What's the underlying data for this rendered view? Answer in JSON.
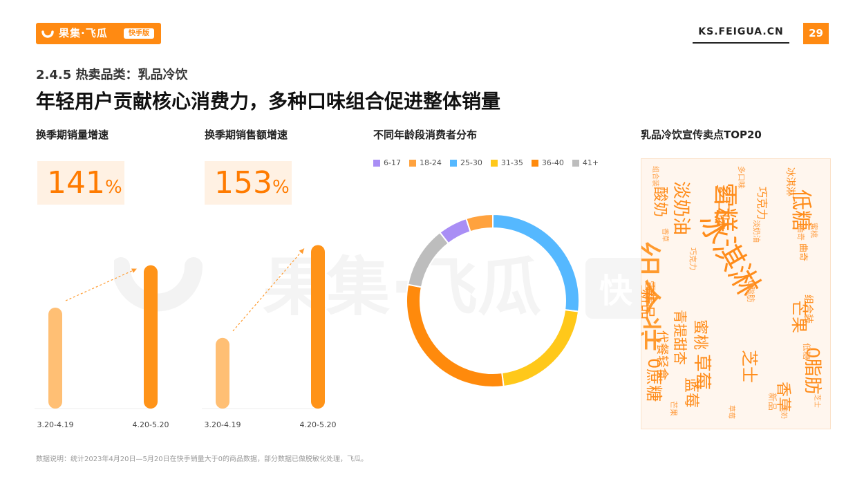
{
  "header": {
    "logo_text": "果集·飞瓜",
    "logo_badge": "快手版",
    "site": "KS.FEIGUA.CN",
    "page_number": "29"
  },
  "subtitle": "2.4.5 热卖品类：乳品冷饮",
  "title": "年轻用户贡献核心消费力，多种口味组合促进整体销量",
  "watermark": {
    "text": "果集·飞瓜",
    "badge": "快"
  },
  "panels": {
    "sales_volume": {
      "title": "换季期销量增速",
      "value": "141",
      "unit": "%"
    },
    "sales_amount": {
      "title": "换季期销售额增速",
      "value": "153",
      "unit": "%"
    },
    "age": {
      "title": "不同年龄段消费者分布"
    },
    "cloud": {
      "title": "乳品冷饮宣传卖点TOP20"
    }
  },
  "chart_data": [
    {
      "type": "bar",
      "categories": [
        "3.20-4.19",
        "4.20-5.20"
      ],
      "values": [
        50,
        71
      ],
      "growth": "141%",
      "colors": [
        "#ffbf74",
        "#ff9318"
      ]
    },
    {
      "type": "bar",
      "categories": [
        "3.20-4.19",
        "4.20-5.20"
      ],
      "values": [
        35,
        81
      ],
      "growth": "153%",
      "colors": [
        "#ffbf74",
        "#ff9318"
      ]
    },
    {
      "type": "pie",
      "donut": true,
      "legend_position": "top",
      "categories": [
        "6-17",
        "18-24",
        "25-30",
        "31-35",
        "36-40",
        "41+"
      ],
      "values": [
        5.5,
        5,
        27,
        21,
        30,
        11.5
      ],
      "colors": [
        "#a98ef5",
        "#ffa23e",
        "#55b8ff",
        "#ffc81a",
        "#ff8a0c",
        "#bdbdbd"
      ]
    }
  ],
  "word_cloud": [
    {
      "text": "组合装",
      "size": 54,
      "color": "#ff9a2e"
    },
    {
      "text": "冰淇淋",
      "size": 44,
      "color": "#ff8c1a"
    },
    {
      "text": "雪糕",
      "size": 36,
      "color": "#ff8c1a"
    },
    {
      "text": "低糖",
      "size": 30,
      "color": "#ff8c1a"
    },
    {
      "text": "淡奶油",
      "size": 26,
      "color": "#ff8c1a"
    },
    {
      "text": "酸奶",
      "size": 22,
      "color": "#ff8c1a"
    },
    {
      "text": "多口味",
      "size": 22,
      "color": "#ff8c1a"
    },
    {
      "text": "0脂肪",
      "size": 26,
      "color": "#ff8c1a"
    },
    {
      "text": "0蔗糖",
      "size": 24,
      "color": "#ff8c1a"
    },
    {
      "text": "芒果",
      "size": 24,
      "color": "#ff8c1a"
    },
    {
      "text": "草莓",
      "size": 26,
      "color": "#ff8c1a"
    },
    {
      "text": "芝士",
      "size": 24,
      "color": "#ff8c1a"
    },
    {
      "text": "蜜桃",
      "size": 22,
      "color": "#ff8c1a"
    },
    {
      "text": "蓝莓",
      "size": 22,
      "color": "#ff8c1a"
    },
    {
      "text": "青提甜杏",
      "size": 20,
      "color": "#ff8c1a"
    },
    {
      "text": "新品",
      "size": 22,
      "color": "#ff8c1a"
    },
    {
      "text": "雪糕",
      "size": 16,
      "color": "#ff8c1a"
    },
    {
      "text": "代餐轻食",
      "size": 18,
      "color": "#ff8c1a"
    },
    {
      "text": "巧克力",
      "size": 16,
      "color": "#ff8c1a"
    },
    {
      "text": "冰淇淋",
      "size": 14,
      "color": "#ff8c1a"
    },
    {
      "text": "组合装",
      "size": 14,
      "color": "#ff8c1a"
    },
    {
      "text": "曲奇",
      "size": 13,
      "color": "#ff8c1a"
    },
    {
      "text": "香草",
      "size": 22,
      "color": "#ff8c1a"
    },
    {
      "text": "新品",
      "size": 13,
      "color": "#ff9f45"
    },
    {
      "text": "0脂肪",
      "size": 12,
      "color": "#ff9f45"
    },
    {
      "text": "多口味",
      "size": 11,
      "color": "#ff9f45"
    },
    {
      "text": "低糖",
      "size": 12,
      "color": "#ff9f45"
    },
    {
      "text": "巧克力",
      "size": 11,
      "color": "#ff9f45"
    },
    {
      "text": "淡奶油",
      "size": 11,
      "color": "#ff9f45"
    },
    {
      "text": "蜜桃",
      "size": 11,
      "color": "#ff9f45"
    },
    {
      "text": "曲奇",
      "size": 11,
      "color": "#ff9f45"
    },
    {
      "text": "酸奶",
      "size": 10,
      "color": "#ff9f45"
    },
    {
      "text": "组合装",
      "size": 10,
      "color": "#ff9f45"
    },
    {
      "text": "香草",
      "size": 10,
      "color": "#ff9f45"
    },
    {
      "text": "芒果",
      "size": 11,
      "color": "#ff9f45"
    },
    {
      "text": "草莓",
      "size": 10,
      "color": "#ff9f45"
    },
    {
      "text": "芝士",
      "size": 10,
      "color": "#ff9f45"
    }
  ],
  "footnote": "数据说明：统计2023年4月20日—5月20日在快手销量大于0的商品数据，部分数据已做脱敏化处理，飞瓜。"
}
